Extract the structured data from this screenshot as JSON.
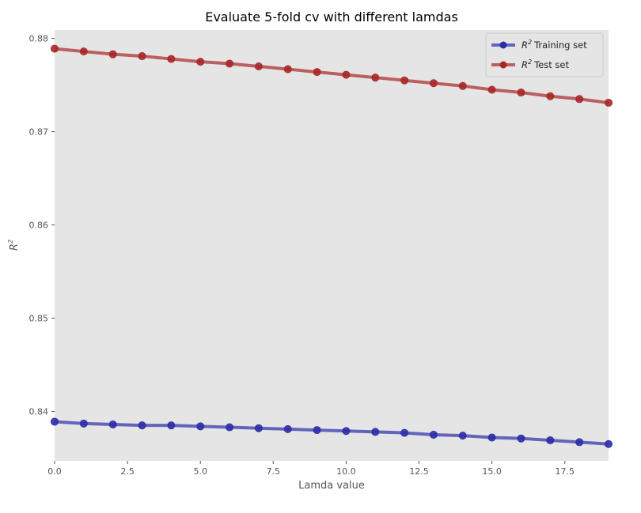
{
  "chart_data": {
    "type": "line",
    "title": "Evaluate 5-fold cv with different lamdas",
    "xlabel": "Lamda value",
    "ylabel_base": "R",
    "ylabel_sup": "2",
    "xlim": [
      0,
      19
    ],
    "ylim": [
      0.8347,
      0.8809
    ],
    "xticks": [
      0.0,
      2.5,
      5.0,
      7.5,
      10.0,
      12.5,
      15.0,
      17.5
    ],
    "xtick_labels": [
      "0.0",
      "2.5",
      "5.0",
      "7.5",
      "10.0",
      "12.5",
      "15.0",
      "17.5"
    ],
    "yticks": [
      0.84,
      0.85,
      0.86,
      0.87,
      0.88
    ],
    "ytick_labels": [
      "0.84",
      "0.85",
      "0.86",
      "0.87",
      "0.88"
    ],
    "grid": false,
    "legend_position": "top-right",
    "x": [
      0,
      1,
      2,
      3,
      4,
      5,
      6,
      7,
      8,
      9,
      10,
      11,
      12,
      13,
      14,
      15,
      16,
      17,
      18,
      19
    ],
    "series": [
      {
        "name_base": "R",
        "name_sup": "2",
        "name_rest": "Training set",
        "color": "#2e2ea8",
        "values": [
          0.8389,
          0.8387,
          0.8386,
          0.8385,
          0.8385,
          0.8384,
          0.8383,
          0.8382,
          0.8381,
          0.838,
          0.8379,
          0.8378,
          0.8377,
          0.8375,
          0.8374,
          0.8372,
          0.8371,
          0.8369,
          0.8367,
          0.8365
        ]
      },
      {
        "name_base": "R",
        "name_sup": "2",
        "name_rest": "Test set",
        "color": "#a82828",
        "values": [
          0.8789,
          0.8786,
          0.8783,
          0.8781,
          0.8778,
          0.8775,
          0.8773,
          0.877,
          0.8767,
          0.8764,
          0.8761,
          0.8758,
          0.8755,
          0.8752,
          0.8749,
          0.8745,
          0.8742,
          0.8738,
          0.8735,
          0.8731
        ]
      }
    ]
  }
}
